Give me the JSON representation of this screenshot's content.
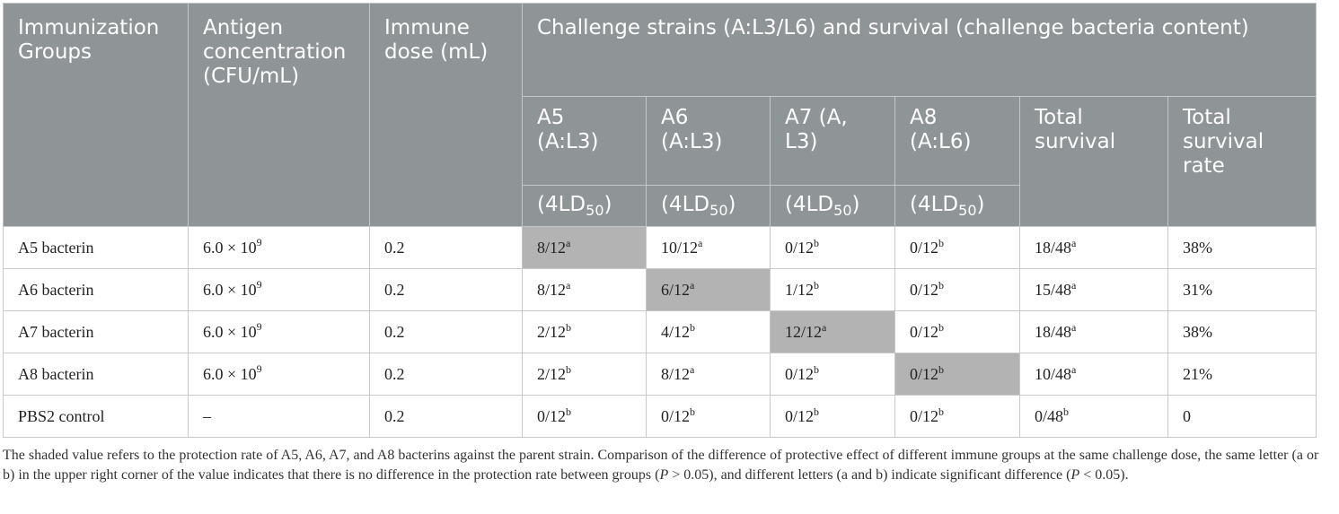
{
  "header": {
    "group": "Immunization Groups",
    "antigen": "Antigen concentration (CFU/mL)",
    "dose": "Immune dose (mL)",
    "challenge": "Challenge strains (A:L3/L6) and survival (challenge bacteria content)",
    "strains": [
      "A5 (A:L3)",
      "A6 (A:L3)",
      "A7 (A, L3)",
      "A8 (A:L6)"
    ],
    "total_survival": "Total survival",
    "total_rate": "Total survival rate",
    "ld_prefix": "(4LD",
    "ld_sub": "50",
    "ld_suffix": ")"
  },
  "rows": [
    {
      "group": "A5 bacterin",
      "antigen": "6.0 × 10",
      "antigen_exp": "9",
      "dose": "0.2",
      "cells": [
        {
          "v": "8/12",
          "s": "a"
        },
        {
          "v": "10/12",
          "s": "a"
        },
        {
          "v": "0/12",
          "s": "b"
        },
        {
          "v": "0/12",
          "s": "b"
        }
      ],
      "total": "18/48",
      "total_sig": "a",
      "rate": "38%"
    },
    {
      "group": "A6 bacterin",
      "antigen": "6.0 × 10",
      "antigen_exp": "9",
      "dose": "0.2",
      "cells": [
        {
          "v": "8/12",
          "s": "a"
        },
        {
          "v": "6/12",
          "s": "a"
        },
        {
          "v": "1/12",
          "s": "b"
        },
        {
          "v": "0/12",
          "s": "b"
        }
      ],
      "total": "15/48",
      "total_sig": "a",
      "rate": "31%"
    },
    {
      "group": "A7 bacterin",
      "antigen": "6.0 × 10",
      "antigen_exp": "9",
      "dose": "0.2",
      "cells": [
        {
          "v": "2/12",
          "s": "b"
        },
        {
          "v": "4/12",
          "s": "b"
        },
        {
          "v": "12/12",
          "s": "a"
        },
        {
          "v": "0/12",
          "s": "b"
        }
      ],
      "total": "18/48",
      "total_sig": "a",
      "rate": "38%"
    },
    {
      "group": "A8 bacterin",
      "antigen": "6.0 × 10",
      "antigen_exp": "9",
      "dose": "0.2",
      "cells": [
        {
          "v": "2/12",
          "s": "b"
        },
        {
          "v": "8/12",
          "s": "a"
        },
        {
          "v": "0/12",
          "s": "b"
        },
        {
          "v": "0/12",
          "s": "b"
        }
      ],
      "total": "10/48",
      "total_sig": "a",
      "rate": "21%"
    },
    {
      "group": "PBS2 control",
      "antigen": "–",
      "antigen_exp": "",
      "dose": "0.2",
      "cells": [
        {
          "v": "0/12",
          "s": "b"
        },
        {
          "v": "0/12",
          "s": "b"
        },
        {
          "v": "0/12",
          "s": "b"
        },
        {
          "v": "0/12",
          "s": "b"
        }
      ],
      "total": "0/48",
      "total_sig": "b",
      "rate": "0"
    }
  ],
  "footnote": {
    "p1": "The shaded value refers to the protection rate of A5, A6, A7, and A8 bacterins against the parent strain. Comparison of the difference of protective effect of different immune groups at the same challenge dose, the same letter (a or b) in the upper right corner of the value indicates that there is no difference in the protection rate between groups (",
    "p_italic_1": "P",
    "p2": " > 0.05), and different letters (a and b) indicate significant difference (",
    "p_italic_2": "P",
    "p3": " < 0.05)."
  }
}
